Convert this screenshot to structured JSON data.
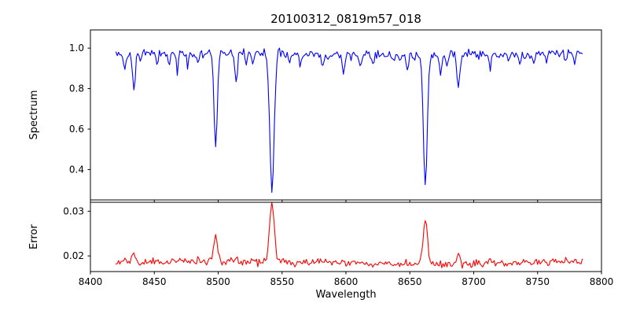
{
  "chart_data": {
    "type": "line",
    "title": "20100312_0819m57_018",
    "xlabel": "Wavelength",
    "xlim": [
      8400,
      8800
    ],
    "xticks": [
      8400,
      8450,
      8500,
      8550,
      8600,
      8650,
      8700,
      8750,
      8800
    ],
    "xtick_labels": [
      "8400",
      "8450",
      "8500",
      "8550",
      "8600",
      "8650",
      "8700",
      "8750",
      "8800"
    ],
    "seed": 42,
    "panels": [
      {
        "name": "spectrum",
        "ylabel": "Spectrum",
        "color": "#0000ff",
        "ylim": [
          0.25,
          1.09
        ],
        "yticks": [
          0.4,
          0.6,
          0.8,
          1.0
        ],
        "ytick_labels": [
          "0.4",
          "0.6",
          "0.8",
          "1.0"
        ],
        "x_start": 8420,
        "x_end": 8785,
        "x_step": 1.0,
        "continuum": 0.97,
        "noise_sigma": 0.011,
        "absorption_lines": [
          {
            "center": 8427,
            "depth": 0.07,
            "width": 0.9
          },
          {
            "center": 8434,
            "depth": 0.19,
            "width": 1.0
          },
          {
            "center": 8439,
            "depth": 0.05,
            "width": 0.8
          },
          {
            "center": 8452,
            "depth": 0.05,
            "width": 0.8
          },
          {
            "center": 8462,
            "depth": 0.05,
            "width": 0.8
          },
          {
            "center": 8468,
            "depth": 0.09,
            "width": 0.9
          },
          {
            "center": 8476,
            "depth": 0.05,
            "width": 0.8
          },
          {
            "center": 8484,
            "depth": 0.04,
            "width": 0.8
          },
          {
            "center": 8498.0,
            "depth": 0.47,
            "width": 1.3
          },
          {
            "center": 8514,
            "depth": 0.14,
            "width": 1.0
          },
          {
            "center": 8522,
            "depth": 0.05,
            "width": 0.8
          },
          {
            "center": 8527,
            "depth": 0.06,
            "width": 0.8
          },
          {
            "center": 8542.1,
            "depth": 0.68,
            "width": 1.7
          },
          {
            "center": 8556,
            "depth": 0.05,
            "width": 0.8
          },
          {
            "center": 8564,
            "depth": 0.04,
            "width": 0.8
          },
          {
            "center": 8582,
            "depth": 0.07,
            "width": 0.9
          },
          {
            "center": 8598,
            "depth": 0.1,
            "width": 1.0
          },
          {
            "center": 8611,
            "depth": 0.06,
            "width": 0.9
          },
          {
            "center": 8621,
            "depth": 0.05,
            "width": 0.8
          },
          {
            "center": 8637,
            "depth": 0.04,
            "width": 0.8
          },
          {
            "center": 8648,
            "depth": 0.07,
            "width": 0.9
          },
          {
            "center": 8662.1,
            "depth": 0.65,
            "width": 1.5
          },
          {
            "center": 8674,
            "depth": 0.09,
            "width": 0.9
          },
          {
            "center": 8679,
            "depth": 0.06,
            "width": 0.8
          },
          {
            "center": 8688,
            "depth": 0.19,
            "width": 1.1
          },
          {
            "center": 8713,
            "depth": 0.06,
            "width": 0.9
          },
          {
            "center": 8727,
            "depth": 0.04,
            "width": 0.8
          },
          {
            "center": 8736,
            "depth": 0.05,
            "width": 0.8
          },
          {
            "center": 8747,
            "depth": 0.04,
            "width": 0.8
          },
          {
            "center": 8757,
            "depth": 0.04,
            "width": 0.8
          },
          {
            "center": 8772,
            "depth": 0.05,
            "width": 0.8
          },
          {
            "center": 8779,
            "depth": 0.04,
            "width": 0.8
          }
        ]
      },
      {
        "name": "error",
        "ylabel": "Error",
        "color": "#ff0000",
        "ylim": [
          0.0165,
          0.032
        ],
        "yticks": [
          0.02,
          0.03
        ],
        "ytick_labels": [
          "0.02",
          "0.03"
        ],
        "baseline": 0.0185,
        "noise_sigma": 0.0004,
        "peaks": [
          {
            "center": 8427,
            "height": 0.0008,
            "width": 1.0
          },
          {
            "center": 8434,
            "height": 0.0018,
            "width": 1.2
          },
          {
            "center": 8470,
            "height": 0.0005,
            "width": 1.0
          },
          {
            "center": 8498,
            "height": 0.0062,
            "width": 1.5
          },
          {
            "center": 8514,
            "height": 0.0008,
            "width": 1.0
          },
          {
            "center": 8542.1,
            "height": 0.0133,
            "width": 1.8
          },
          {
            "center": 8598,
            "height": 0.0006,
            "width": 1.0
          },
          {
            "center": 8662.1,
            "height": 0.0102,
            "width": 1.6
          },
          {
            "center": 8688,
            "height": 0.0022,
            "width": 1.2
          },
          {
            "center": 8713,
            "height": 0.0006,
            "width": 1.0
          },
          {
            "center": 8755,
            "height": 0.0005,
            "width": 0.9
          },
          {
            "center": 8772,
            "height": 0.0007,
            "width": 0.9
          }
        ]
      }
    ]
  }
}
